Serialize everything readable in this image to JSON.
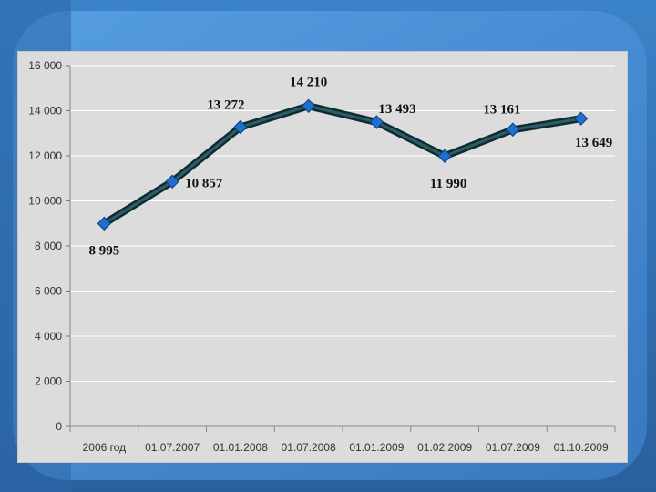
{
  "colors": {
    "background": "#2f6fb0",
    "panel": "#dcdcdc",
    "line_outer": "#0e2a33",
    "line_inner": "#2e5d63",
    "marker": "#1f6fd0"
  },
  "chart_data": {
    "type": "line",
    "categories": [
      "2006 год",
      "01.07.2007",
      "01.01.2008",
      "01.07.2008",
      "01.01.2009",
      "01.02.2009",
      "01.07.2009",
      "01.10.2009"
    ],
    "series": [
      {
        "values": [
          8995,
          10857,
          13272,
          14210,
          13493,
          11990,
          13161,
          13649
        ]
      }
    ],
    "data_labels": [
      "8 995",
      "10 857",
      "13 272",
      "14 210",
      "13 493",
      "11 990",
      "13 161",
      "13 649"
    ],
    "y_ticks": [
      0,
      2000,
      4000,
      6000,
      8000,
      10000,
      12000,
      14000,
      16000
    ],
    "y_tick_labels": [
      "0",
      "2 000",
      "4 000",
      "6 000",
      "8 000",
      "10 000",
      "12 000",
      "14 000",
      "16 000"
    ],
    "ylim": [
      0,
      16000
    ],
    "grid": true,
    "legend": "none",
    "title": "",
    "xlabel": "",
    "ylabel": ""
  }
}
